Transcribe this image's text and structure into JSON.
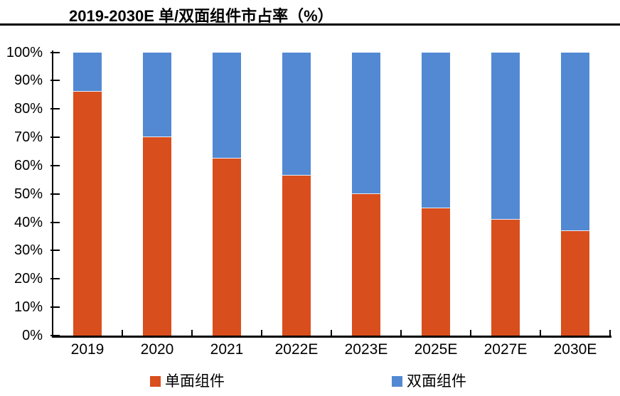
{
  "title": "2019-2030E 单/双面组件市占率（%）",
  "colors": {
    "single_sided": "#D94E1D",
    "double_sided": "#5289D2",
    "axis": "#000000",
    "title_rule": "#000000"
  },
  "legend": {
    "items": [
      {
        "label": "单面组件",
        "color": "#D94E1D"
      },
      {
        "label": "双面组件",
        "color": "#5289D2"
      }
    ]
  },
  "chart_data": {
    "type": "bar",
    "stacked": true,
    "title": "2019-2030E 单/双面组件市占率（%）",
    "categories": [
      "2019",
      "2020",
      "2021",
      "2022E",
      "2023E",
      "2025E",
      "2027E",
      "2030E"
    ],
    "series": [
      {
        "name": "单面组件",
        "color": "#D94E1D",
        "values": [
          86,
          70,
          62.5,
          56.5,
          50,
          45,
          41,
          37
        ]
      },
      {
        "name": "双面组件",
        "color": "#5289D2",
        "values": [
          14,
          30,
          37.5,
          43.5,
          50,
          55,
          59,
          63
        ]
      }
    ],
    "xlabel": "",
    "ylabel": "",
    "ylim": [
      0,
      100
    ],
    "y_tick_step": 10,
    "y_tick_labels": [
      "0%",
      "10%",
      "20%",
      "30%",
      "40%",
      "50%",
      "60%",
      "70%",
      "80%",
      "90%",
      "100%"
    ],
    "grid": false,
    "legend_position": "bottom"
  }
}
